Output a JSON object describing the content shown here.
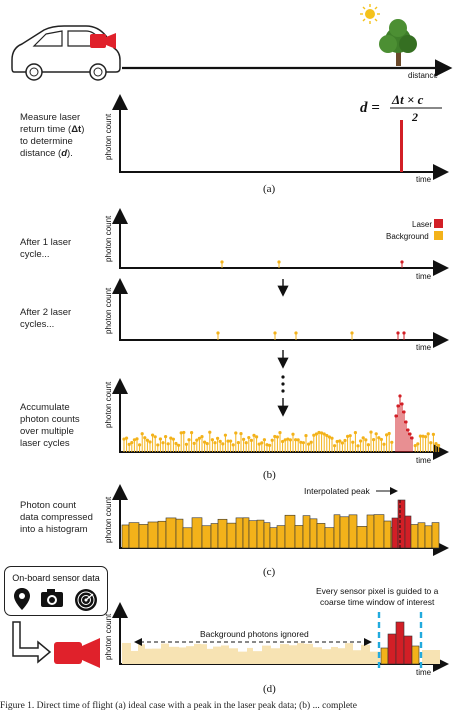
{
  "colors": {
    "laser": "#d21f26",
    "background": "#f3b21a",
    "background_faded": "#f7e3b3",
    "axis": "#111111",
    "dashed": "#22aadd",
    "car_body": "#ffffff",
    "sensor": "#e0212b",
    "tree": "#3f7f2a",
    "sun": "#f4c21c"
  },
  "panel_a": {
    "axis_label_distance": "distance",
    "text_measure_line1": "Measure laser",
    "text_measure_line2": "return time (",
    "text_measure_dt": "Δt",
    "text_measure_line2b": ")",
    "text_measure_line3": "to determine",
    "text_measure_line4": "distance (",
    "text_measure_d": "d",
    "text_measure_line4b": ").",
    "equation_left": "d =",
    "equation_numerator": "Δt × c",
    "equation_denominator": "2",
    "ylabel": "photon count",
    "xlabel": "time",
    "caption": "(a)"
  },
  "panel_b": {
    "text_after1_line1": "After 1 laser",
    "text_after1_line2": "cycle...",
    "text_after2_line1": "After 2 laser",
    "text_after2_line2": "cycles...",
    "text_accum_line1": "Accumulate",
    "text_accum_line2": "photon counts",
    "text_accum_line3": "over multiple",
    "text_accum_line4": "laser cycles",
    "legend_laser": "Laser",
    "legend_background": "Background",
    "ylabel": "photon count",
    "xlabel": "time",
    "caption": "(b)"
  },
  "panel_c": {
    "text_line1": "Photon count",
    "text_line2": "data compressed",
    "text_line3": "into a histogram",
    "annotation": "Interpolated peak",
    "ylabel": "photon count",
    "caption": "(c)"
  },
  "panel_d": {
    "box_title": "On-board sensor data",
    "annotation_top_line1": "Every sensor pixel is guided to a",
    "annotation_top_line2": "coarse time window of interest",
    "annotation_ignored": "Background photons ignored",
    "ylabel": "photon count",
    "xlabel": "time",
    "caption": "(d)"
  },
  "footer": "Figure 1. Direct time of flight (a) ideal case with a peak in the laser peak data; (b) ... complete"
}
